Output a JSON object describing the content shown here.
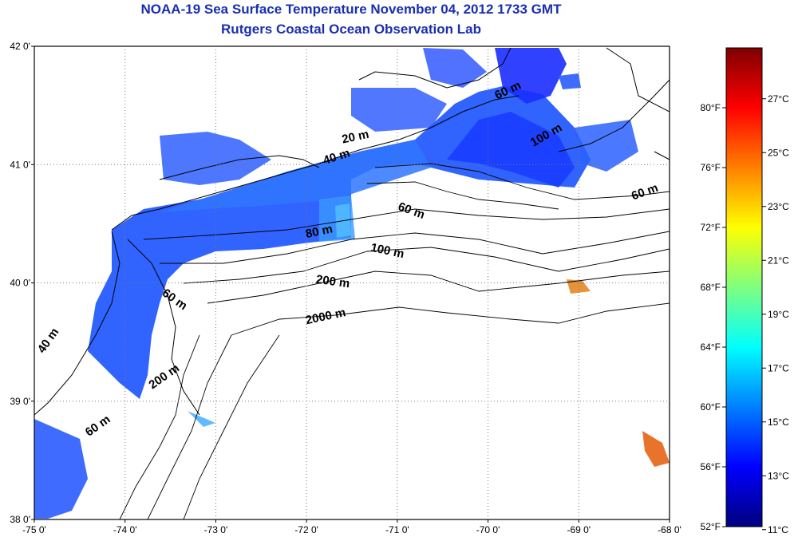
{
  "title": "NOAA-19 Sea Surface Temperature November 04, 2012 1733 GMT",
  "subtitle": "Rutgers Coastal Ocean Observation Lab",
  "axes": {
    "lat_ticks": [
      "42 0'",
      "41 0'",
      "40 0'",
      "39 0'",
      "38 0'"
    ],
    "lon_ticks": [
      "-75 0'",
      "-74 0'",
      "-73 0'",
      "-72 0'",
      "-71 0'",
      "-70 0'",
      "-69 0'",
      "-68 0'"
    ],
    "lat_range": [
      38,
      42
    ],
    "lon_range": [
      -75,
      -68
    ],
    "grid": "dotted"
  },
  "depth_labels": [
    {
      "text": "20 m",
      "lon": -71.6,
      "lat": 41.18,
      "rot": -12
    },
    {
      "text": "40 m",
      "lon": -71.8,
      "lat": 41.0,
      "rot": -18
    },
    {
      "text": "60 m",
      "lon": -71.0,
      "lat": 40.62,
      "rot": 20
    },
    {
      "text": "80 m",
      "lon": -72.0,
      "lat": 40.38,
      "rot": -12
    },
    {
      "text": "100 m",
      "lon": -71.3,
      "lat": 40.27,
      "rot": 12
    },
    {
      "text": "200 m",
      "lon": -71.9,
      "lat": 40.0,
      "rot": 8
    },
    {
      "text": "2000 m",
      "lon": -72.0,
      "lat": 39.65,
      "rot": -12
    },
    {
      "text": "60 m",
      "lon": -73.6,
      "lat": 39.9,
      "rot": 35
    },
    {
      "text": "200 m",
      "lon": -73.7,
      "lat": 39.1,
      "rot": -35
    },
    {
      "text": "60 m",
      "lon": -74.4,
      "lat": 38.7,
      "rot": -35
    },
    {
      "text": "40 m",
      "lon": -74.9,
      "lat": 39.4,
      "rot": -55
    },
    {
      "text": "60 m",
      "lon": -68.4,
      "lat": 40.7,
      "rot": -20
    },
    {
      "text": "100 m",
      "lon": -69.5,
      "lat": 41.15,
      "rot": -30
    },
    {
      "text": "60 m",
      "lon": -69.9,
      "lat": 41.55,
      "rot": -25
    }
  ],
  "colorbar": {
    "fahrenheit_labels": [
      "80°F",
      "76°F",
      "72°F",
      "68°F",
      "64°F",
      "60°F",
      "56°F",
      "52°F"
    ],
    "celsius_labels": [
      "27°C",
      "25°C",
      "23°C",
      "21°C",
      "19°C",
      "17°C",
      "15°C",
      "13°C",
      "11°C"
    ],
    "colors": [
      "#00007f",
      "#0000ff",
      "#007fff",
      "#00ffff",
      "#7fff7f",
      "#ffff00",
      "#ff7f00",
      "#ff0000",
      "#7f0000"
    ]
  }
}
